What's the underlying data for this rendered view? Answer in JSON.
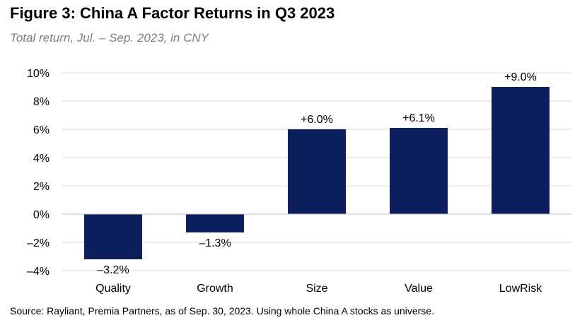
{
  "header": {
    "title": "Figure 3: China A Factor Returns in Q3 2023",
    "subtitle": "Total return, Jul. – Sep. 2023, in CNY"
  },
  "footer": {
    "source": "Source: Rayliant, Premia Partners, as of Sep. 30, 2023. Using whole China A stocks as universe."
  },
  "colors": {
    "bar": "#0d1f5c",
    "grid": "#d9d9d9"
  },
  "chart_data": {
    "type": "bar",
    "title": "Figure 3: China A Factor Returns in Q3 2023",
    "subtitle": "Total return, Jul. – Sep. 2023, in CNY",
    "xlabel": "",
    "ylabel": "",
    "categories": [
      "Quality",
      "Growth",
      "Size",
      "Value",
      "LowRisk"
    ],
    "values": [
      -3.2,
      -1.3,
      6.0,
      6.1,
      9.0
    ],
    "data_labels": [
      "–3.2%",
      "–1.3%",
      "+6.0%",
      "+6.1%",
      "+9.0%"
    ],
    "ylim": [
      -4,
      10
    ],
    "yticks": [
      -4,
      -2,
      0,
      2,
      4,
      6,
      8,
      10
    ],
    "ytick_labels": [
      "–4%",
      "–2%",
      "0%",
      "2%",
      "4%",
      "6%",
      "8%",
      "10%"
    ],
    "grid": true,
    "legend": "none"
  }
}
